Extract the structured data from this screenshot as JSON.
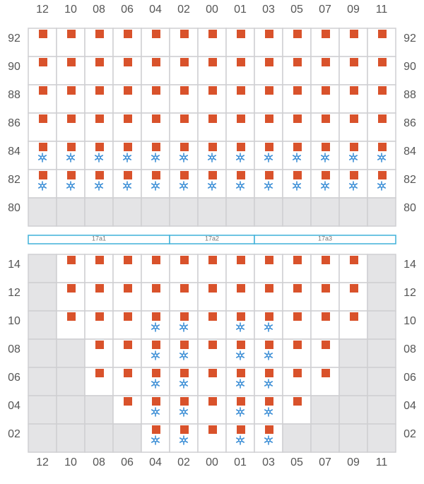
{
  "columns": [
    "12",
    "10",
    "08",
    "06",
    "04",
    "02",
    "00",
    "01",
    "03",
    "05",
    "07",
    "09",
    "11"
  ],
  "top_bay": {
    "rows": [
      "92",
      "90",
      "88",
      "86",
      "84",
      "82",
      "80"
    ],
    "cells": [
      [
        "box",
        "box",
        "box",
        "box",
        "box",
        "box",
        "box",
        "box",
        "box",
        "box",
        "box",
        "box",
        "box"
      ],
      [
        "box",
        "box",
        "box",
        "box",
        "box",
        "box",
        "box",
        "box",
        "box",
        "box",
        "box",
        "box",
        "box"
      ],
      [
        "box",
        "box",
        "box",
        "box",
        "box",
        "box",
        "box",
        "box",
        "box",
        "box",
        "box",
        "box",
        "box"
      ],
      [
        "box",
        "box",
        "box",
        "box",
        "box",
        "box",
        "box",
        "box",
        "box",
        "box",
        "box",
        "box",
        "box"
      ],
      [
        "reefer",
        "reefer",
        "reefer",
        "reefer",
        "reefer",
        "reefer",
        "reefer",
        "reefer",
        "reefer",
        "reefer",
        "reefer",
        "reefer",
        "reefer"
      ],
      [
        "reefer",
        "reefer",
        "reefer",
        "reefer",
        "reefer",
        "reefer",
        "reefer",
        "reefer",
        "reefer",
        "reefer",
        "reefer",
        "reefer",
        "reefer"
      ],
      [
        "none",
        "none",
        "none",
        "none",
        "none",
        "none",
        "none",
        "none",
        "none",
        "none",
        "none",
        "none",
        "none"
      ]
    ]
  },
  "hatch_covers": [
    {
      "label": "17a1",
      "from": "12",
      "to": "04"
    },
    {
      "label": "17a2",
      "from": "02",
      "to": "01"
    },
    {
      "label": "17a3",
      "from": "03",
      "to": "11"
    }
  ],
  "bottom_bay": {
    "rows": [
      "14",
      "12",
      "10",
      "08",
      "06",
      "04",
      "02"
    ],
    "cells": [
      [
        "none",
        "box",
        "box",
        "box",
        "box",
        "box",
        "box",
        "box",
        "box",
        "box",
        "box",
        "box",
        "none"
      ],
      [
        "none",
        "box",
        "box",
        "box",
        "box",
        "box",
        "box",
        "box",
        "box",
        "box",
        "box",
        "box",
        "none"
      ],
      [
        "none",
        "box",
        "box",
        "box",
        "reefer",
        "reefer",
        "box",
        "reefer",
        "reefer",
        "box",
        "box",
        "box",
        "none"
      ],
      [
        "none",
        "none",
        "box",
        "box",
        "reefer",
        "reefer",
        "box",
        "reefer",
        "reefer",
        "box",
        "box",
        "none",
        "none"
      ],
      [
        "none",
        "none",
        "box",
        "box",
        "reefer",
        "reefer",
        "box",
        "reefer",
        "reefer",
        "box",
        "box",
        "none",
        "none"
      ],
      [
        "none",
        "none",
        "none",
        "box",
        "reefer",
        "reefer",
        "box",
        "reefer",
        "reefer",
        "box",
        "none",
        "none",
        "none"
      ],
      [
        "none",
        "none",
        "none",
        "none",
        "reefer",
        "reefer",
        "box",
        "reefer",
        "reefer",
        "none",
        "none",
        "none",
        "none"
      ]
    ]
  }
}
